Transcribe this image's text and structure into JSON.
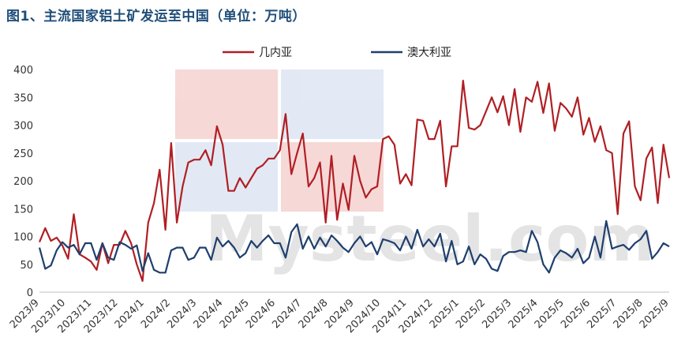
{
  "chart_data": {
    "type": "line",
    "title": "图1、主流国家铝土矿发运至中国（单位：万吨）",
    "xlabel": "",
    "ylabel": "",
    "ylim": [
      0,
      400
    ],
    "yticks": [
      0,
      50,
      100,
      150,
      200,
      250,
      300,
      350,
      400
    ],
    "x_tick_labels": [
      "2023/9",
      "2023/10",
      "2023/11",
      "2023/12",
      "2024/1",
      "2024/2",
      "2024/3",
      "2024/4",
      "2024/5",
      "2024/6",
      "2024/7",
      "2024/8",
      "2024/9",
      "2024/10",
      "2024/11",
      "2024/12",
      "2025/1",
      "2025/2",
      "2025/3",
      "2025/4",
      "2025/5",
      "2025/6",
      "2025/7",
      "2025/8",
      "2025/9"
    ],
    "x_start": "2023/9",
    "x_unit": "week",
    "grid": false,
    "legend_position": "top-center",
    "series": [
      {
        "name": "几内亚",
        "color": "#b01f24",
        "values": [
          90,
          115,
          92,
          98,
          84,
          60,
          140,
          68,
          62,
          55,
          40,
          88,
          52,
          85,
          85,
          110,
          88,
          50,
          20,
          125,
          160,
          220,
          112,
          268,
          125,
          190,
          233,
          238,
          238,
          255,
          228,
          298,
          265,
          182,
          182,
          205,
          188,
          205,
          222,
          228,
          240,
          240,
          255,
          320,
          212,
          250,
          285,
          190,
          205,
          233,
          125,
          245,
          130,
          195,
          148,
          245,
          200,
          170,
          185,
          190,
          275,
          280,
          265,
          195,
          212,
          192,
          310,
          308,
          275,
          275,
          308,
          190,
          262,
          262,
          380,
          295,
          292,
          300,
          325,
          350,
          323,
          352,
          300,
          365,
          288,
          350,
          342,
          378,
          322,
          375,
          290,
          340,
          330,
          315,
          350,
          283,
          313,
          270,
          298,
          255,
          250,
          140,
          285,
          307,
          190,
          165,
          240,
          260,
          160,
          265,
          205
        ],
        "labels": []
      },
      {
        "name": "澳大利亚",
        "color": "#1f3f6e",
        "values": [
          80,
          42,
          48,
          75,
          90,
          80,
          85,
          68,
          88,
          88,
          58,
          88,
          62,
          58,
          90,
          85,
          78,
          84,
          38,
          70,
          40,
          35,
          35,
          75,
          80,
          80,
          58,
          62,
          80,
          80,
          58,
          98,
          82,
          92,
          80,
          62,
          70,
          92,
          80,
          92,
          102,
          88,
          88,
          62,
          108,
          122,
          78,
          100,
          78,
          98,
          82,
          102,
          92,
          80,
          72,
          88,
          100,
          82,
          90,
          68,
          95,
          92,
          88,
          75,
          100,
          78,
          112,
          82,
          95,
          82,
          105,
          55,
          92,
          50,
          55,
          82,
          50,
          68,
          60,
          42,
          38,
          65,
          72,
          72,
          75,
          72,
          110,
          90,
          50,
          35,
          62,
          75,
          70,
          62,
          78,
          52,
          62,
          100,
          62,
          128,
          78,
          82,
          85,
          76,
          88,
          95,
          110,
          60,
          72,
          88,
          82
        ],
        "labels": []
      }
    ]
  }
}
